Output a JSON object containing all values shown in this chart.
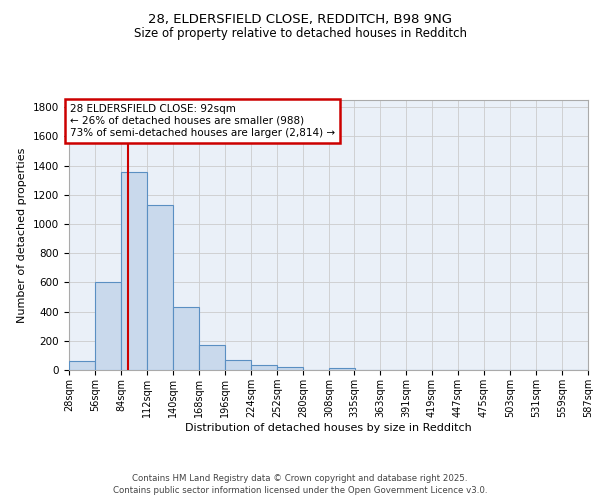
{
  "title_line1": "28, ELDERSFIELD CLOSE, REDDITCH, B98 9NG",
  "title_line2": "Size of property relative to detached houses in Redditch",
  "xlabel": "Distribution of detached houses by size in Redditch",
  "ylabel": "Number of detached properties",
  "bin_edges": [
    28,
    56,
    84,
    112,
    140,
    168,
    196,
    224,
    252,
    280,
    308,
    335,
    363,
    391,
    419,
    447,
    475,
    503,
    531,
    559,
    587
  ],
  "bar_heights": [
    60,
    605,
    1360,
    1130,
    430,
    170,
    68,
    35,
    20,
    0,
    15,
    0,
    0,
    0,
    0,
    0,
    0,
    0,
    0,
    0
  ],
  "bar_color": "#c9d9ec",
  "bar_edge_color": "#5a8fc2",
  "grid_color": "#cccccc",
  "bg_color": "#eaf0f8",
  "vline_x": 92,
  "vline_color": "#cc0000",
  "annotation_text": "28 ELDERSFIELD CLOSE: 92sqm\n← 26% of detached houses are smaller (988)\n73% of semi-detached houses are larger (2,814) →",
  "annotation_box_color": "#cc0000",
  "annotation_bg": "#ffffff",
  "ylim": [
    0,
    1850
  ],
  "yticks": [
    0,
    200,
    400,
    600,
    800,
    1000,
    1200,
    1400,
    1600,
    1800
  ],
  "footer_line1": "Contains HM Land Registry data © Crown copyright and database right 2025.",
  "footer_line2": "Contains public sector information licensed under the Open Government Licence v3.0.",
  "tick_labels": [
    "28sqm",
    "56sqm",
    "84sqm",
    "112sqm",
    "140sqm",
    "168sqm",
    "196sqm",
    "224sqm",
    "252sqm",
    "280sqm",
    "308sqm",
    "335sqm",
    "363sqm",
    "391sqm",
    "419sqm",
    "447sqm",
    "475sqm",
    "503sqm",
    "531sqm",
    "559sqm",
    "587sqm"
  ]
}
